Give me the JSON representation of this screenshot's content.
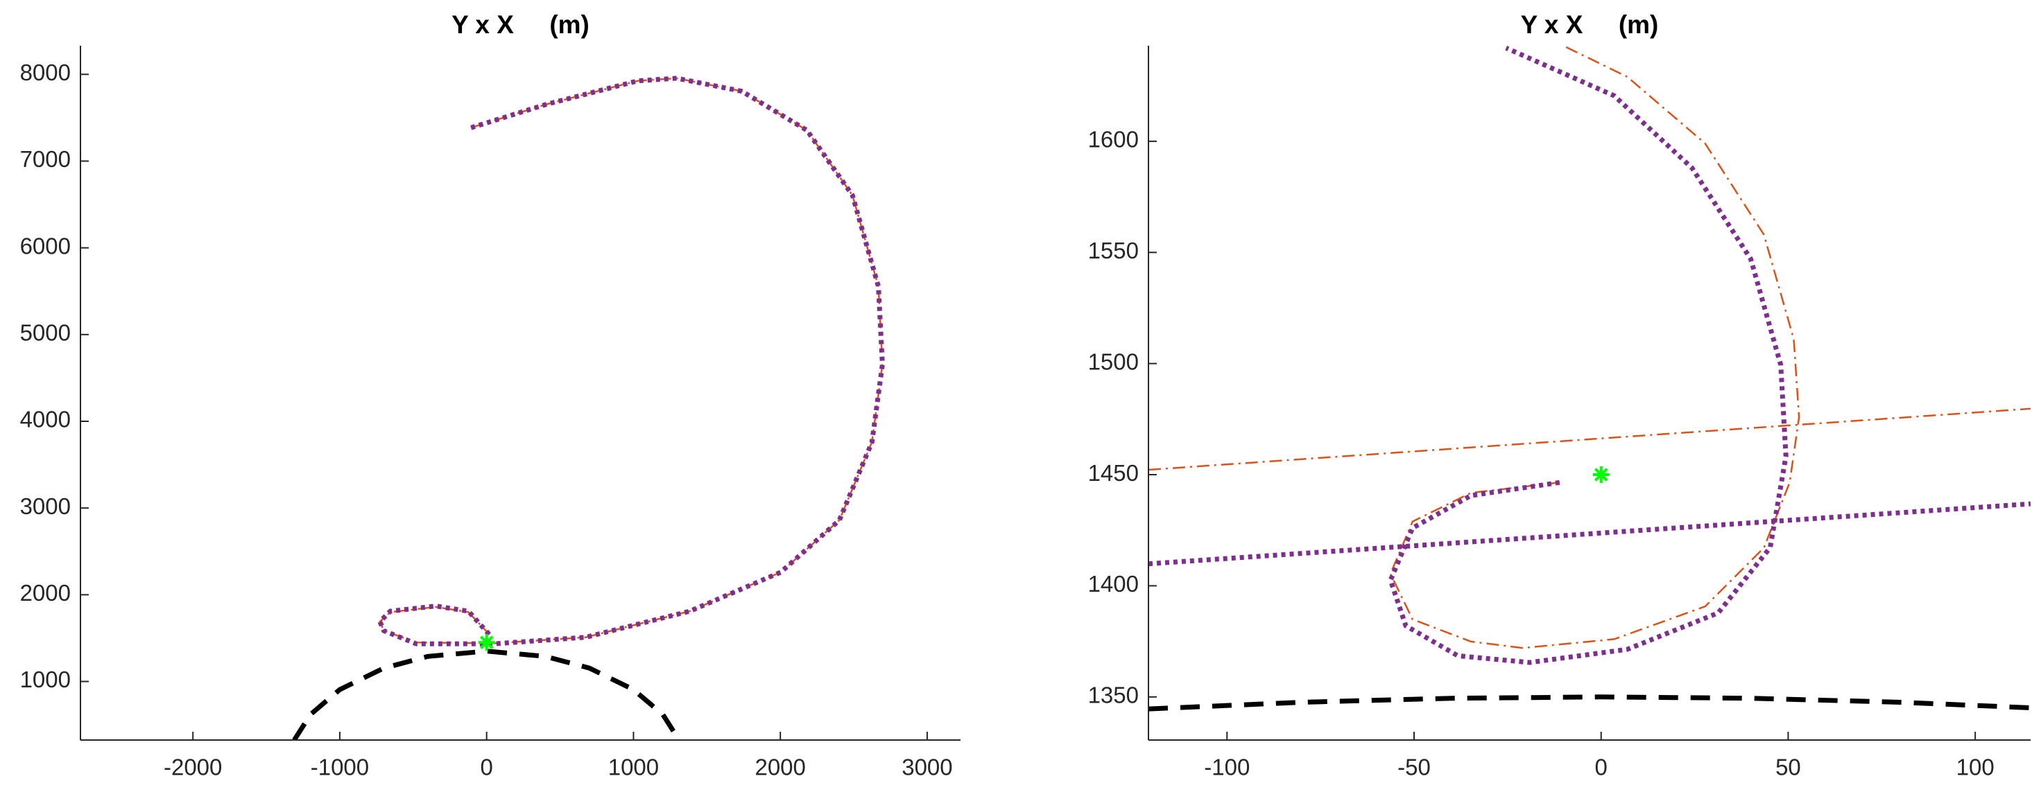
{
  "chart_data": [
    {
      "type": "line",
      "title": "Y x X     (m)",
      "xlim": [
        -2766,
        3227
      ],
      "ylim": [
        325,
        8330
      ],
      "xticks": [
        -2000,
        -1000,
        0,
        1000,
        2000,
        3000
      ],
      "yticks": [
        1000,
        2000,
        3000,
        4000,
        5000,
        6000,
        7000,
        8000
      ],
      "series": [
        {
          "color": "#000000",
          "linestyle": "dashed",
          "x": [
            -1310,
            -1200,
            -1000,
            -700,
            -400,
            0,
            400,
            700,
            1000,
            1200,
            1310
          ],
          "values": [
            325,
            619,
            907,
            1154,
            1289,
            1350,
            1289,
            1154,
            907,
            619,
            325
          ]
        },
        {
          "color": "#d95319",
          "linestyle": "dashdot",
          "x": [
            -106,
            408,
            1028,
            1294,
            1738,
            2181,
            2491,
            2668,
            2695,
            2624,
            2402,
            2003,
            1383,
            674,
            53,
            -479,
            -700,
            -727,
            -656,
            -346,
            -124,
            20
          ],
          "values": [
            7385,
            7655,
            7925,
            7955,
            7805,
            7355,
            6605,
            5555,
            4655,
            3760,
            2860,
            2260,
            1810,
            1510,
            1440,
            1450,
            1585,
            1690,
            1800,
            1860,
            1800,
            1540
          ]
        },
        {
          "color": "#7e2f8e",
          "linestyle": "dotted",
          "x": [
            -106,
            408,
            1028,
            1294,
            1738,
            2181,
            2491,
            2668,
            2695,
            2624,
            2402,
            2003,
            1383,
            674,
            53,
            -479,
            -700,
            -727,
            -656,
            -346,
            -124,
            35
          ],
          "values": [
            7385,
            7655,
            7925,
            7955,
            7805,
            7355,
            6605,
            5555,
            4655,
            3760,
            2860,
            2260,
            1810,
            1510,
            1435,
            1435,
            1585,
            1690,
            1810,
            1870,
            1810,
            1510
          ]
        },
        {
          "color": "#00ff00",
          "linestyle": "none",
          "marker": "*",
          "x": [
            0
          ],
          "values": [
            1450
          ]
        }
      ]
    },
    {
      "type": "line",
      "title": "Y x X     (m)",
      "xlim": [
        -121,
        114.8
      ],
      "ylim": [
        1330.6,
        1643
      ],
      "xticks": [
        -100,
        -50,
        0,
        50,
        100
      ],
      "yticks": [
        1350,
        1400,
        1450,
        1500,
        1550,
        1600
      ],
      "series": [
        {
          "color": "#000000",
          "linestyle": "dashed",
          "x": [
            -121,
            -80,
            -40,
            0,
            40,
            80,
            114.8
          ],
          "values": [
            1344.6,
            1347.6,
            1349.4,
            1350,
            1349.4,
            1347.6,
            1345.1
          ]
        },
        {
          "color": "#d95319",
          "linestyle": "dashdot",
          "x": [
            -11.1,
            -34.8,
            -50.4,
            -56.3,
            -50.4,
            -34.8,
            -20.9,
            3.5,
            27.8,
            43.5,
            50.4,
            52.9,
            51.5,
            43.5,
            27.8,
            7,
            -10.1
          ],
          "values": [
            1446.5,
            1441.8,
            1428.9,
            1405.4,
            1384.9,
            1374.9,
            1372,
            1376,
            1390.7,
            1417.1,
            1446.5,
            1475.8,
            1511,
            1558,
            1599,
            1629,
            1643
          ]
        },
        {
          "color": "#d95319",
          "linestyle": "dashdot",
          "x": [
            -121,
            114.8
          ],
          "values": [
            1452.2,
            1479.7
          ]
        },
        {
          "color": "#7e2f8e",
          "linestyle": "dotted",
          "x": [
            -11.1,
            -34.8,
            -50.4,
            -56.3,
            -52.2,
            -38.3,
            -19.1,
            7,
            31.3,
            45.2,
            49.4,
            48,
            40,
            24.3,
            3.5,
            -25.4
          ],
          "values": [
            1446.5,
            1440.6,
            1426,
            1402.5,
            1382,
            1368.5,
            1365.5,
            1371.4,
            1387.8,
            1417.2,
            1458.3,
            1499.4,
            1547,
            1588,
            1620.5,
            1642
          ]
        },
        {
          "color": "#7e2f8e",
          "linestyle": "dotted",
          "x": [
            -121,
            114.8
          ],
          "values": [
            1409.9,
            1436.9
          ]
        },
        {
          "color": "#00ff00",
          "linestyle": "none",
          "marker": "*",
          "x": [
            0
          ],
          "values": [
            1450
          ]
        }
      ]
    }
  ]
}
